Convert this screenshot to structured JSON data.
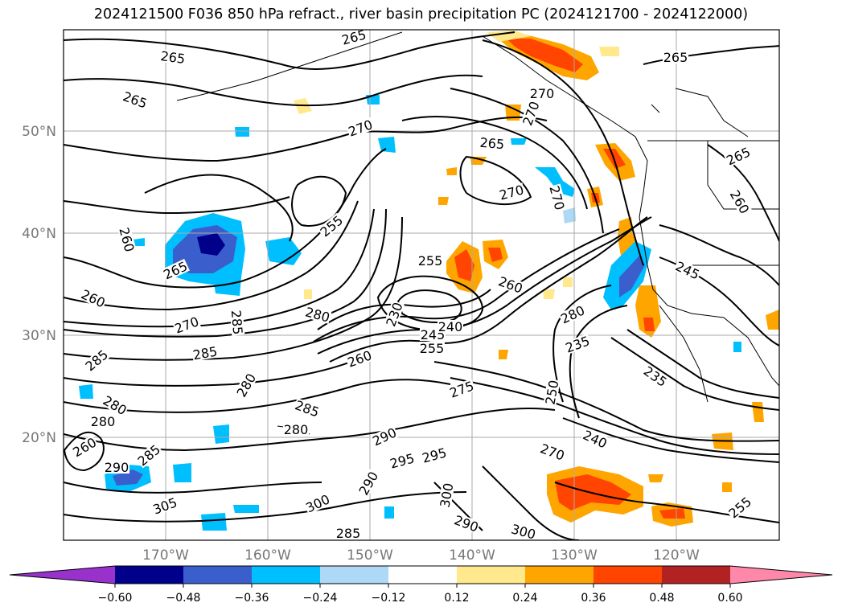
{
  "title": "2024121500 F036 850 hPa refract., river basin precipitation PC (2024121700 - 2024122000)",
  "lat_labels": [
    "50°N",
    "40°N",
    "30°N",
    "20°N"
  ],
  "lon_labels": [
    "170°W",
    "160°W",
    "150°W",
    "140°W",
    "130°W",
    "120°W"
  ],
  "colorbar": {
    "ticks": [
      "−0.60",
      "−0.48",
      "−0.36",
      "−0.24",
      "−0.12",
      "0.12",
      "0.24",
      "0.36",
      "0.48",
      "0.60"
    ],
    "colors": [
      "#9932cc",
      "#00008b",
      "#3a5fcd",
      "#00bfff",
      "#add8f6",
      "#ffffff",
      "#ffe98c",
      "#ffa500",
      "#ff4500",
      "#b22222",
      "#ff88aa"
    ]
  },
  "contour_labels": [
    "265",
    "265",
    "265",
    "265",
    "270",
    "270",
    "265",
    "270",
    "270",
    "265",
    "260",
    "260",
    "265",
    "255",
    "260",
    "255",
    "260",
    "270",
    "285",
    "280",
    "285",
    "285",
    "245",
    "240",
    "255",
    "260",
    "280",
    "270",
    "245",
    "235",
    "235",
    "280",
    "285",
    "280",
    "280",
    "275",
    "250",
    "240",
    "270",
    "290",
    "295",
    "295",
    "290",
    "285",
    "305",
    "300",
    "300",
    "290",
    "300",
    "285",
    "280",
    "260",
    "255",
    "230",
    "290"
  ]
}
